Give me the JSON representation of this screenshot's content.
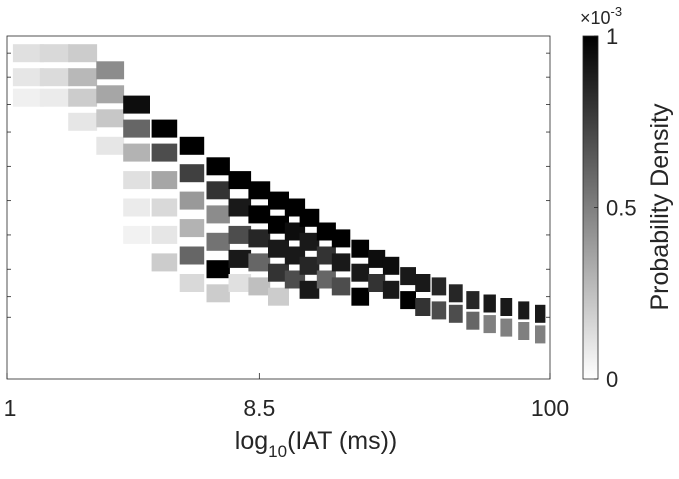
{
  "chart_data": {
    "type": "heatmap",
    "xlabel_main": "log",
    "xlabel_sub": "10",
    "xlabel_rest": "(IAT (ms))",
    "x_tick_labels": [
      "1",
      "8.5",
      "100"
    ],
    "x_tick_values": [
      1,
      8.5,
      100
    ],
    "x_scale": "log",
    "xlim": [
      1,
      100
    ],
    "colorbar": {
      "label": "Probability Density",
      "tick_labels": [
        "0",
        "0.5",
        "1"
      ],
      "tick_values": [
        0,
        0.5,
        1
      ],
      "exponent_base": "×10",
      "exponent_power": "-3",
      "colormap": [
        "#ffffff",
        "#000000"
      ]
    },
    "ylabel": "",
    "grid": false,
    "cells": [
      {
        "x": 1.2,
        "y": 0.95,
        "v": 0.12
      },
      {
        "x": 1.5,
        "y": 0.95,
        "v": 0.15
      },
      {
        "x": 1.2,
        "y": 0.88,
        "v": 0.1
      },
      {
        "x": 1.5,
        "y": 0.88,
        "v": 0.14
      },
      {
        "x": 1.2,
        "y": 0.82,
        "v": 0.06
      },
      {
        "x": 1.5,
        "y": 0.82,
        "v": 0.08
      },
      {
        "x": 1.9,
        "y": 0.95,
        "v": 0.2
      },
      {
        "x": 1.9,
        "y": 0.88,
        "v": 0.28
      },
      {
        "x": 1.9,
        "y": 0.82,
        "v": 0.2
      },
      {
        "x": 1.9,
        "y": 0.75,
        "v": 0.1
      },
      {
        "x": 2.4,
        "y": 0.9,
        "v": 0.45
      },
      {
        "x": 2.4,
        "y": 0.83,
        "v": 0.35
      },
      {
        "x": 2.4,
        "y": 0.76,
        "v": 0.22
      },
      {
        "x": 2.4,
        "y": 0.68,
        "v": 0.1
      },
      {
        "x": 3.0,
        "y": 0.8,
        "v": 0.95
      },
      {
        "x": 3.0,
        "y": 0.73,
        "v": 0.6
      },
      {
        "x": 3.0,
        "y": 0.66,
        "v": 0.3
      },
      {
        "x": 3.0,
        "y": 0.58,
        "v": 0.12
      },
      {
        "x": 3.0,
        "y": 0.5,
        "v": 0.08
      },
      {
        "x": 3.0,
        "y": 0.42,
        "v": 0.05
      },
      {
        "x": 3.8,
        "y": 0.73,
        "v": 1.0
      },
      {
        "x": 3.8,
        "y": 0.66,
        "v": 0.7
      },
      {
        "x": 3.8,
        "y": 0.58,
        "v": 0.35
      },
      {
        "x": 3.8,
        "y": 0.5,
        "v": 0.15
      },
      {
        "x": 3.8,
        "y": 0.42,
        "v": 0.1
      },
      {
        "x": 3.8,
        "y": 0.34,
        "v": 0.2
      },
      {
        "x": 4.8,
        "y": 0.68,
        "v": 1.0
      },
      {
        "x": 4.8,
        "y": 0.6,
        "v": 0.75
      },
      {
        "x": 4.8,
        "y": 0.52,
        "v": 0.4
      },
      {
        "x": 4.8,
        "y": 0.44,
        "v": 0.3
      },
      {
        "x": 4.8,
        "y": 0.36,
        "v": 0.6
      },
      {
        "x": 4.8,
        "y": 0.28,
        "v": 0.15
      },
      {
        "x": 6.0,
        "y": 0.62,
        "v": 1.0
      },
      {
        "x": 6.0,
        "y": 0.55,
        "v": 0.8
      },
      {
        "x": 6.0,
        "y": 0.48,
        "v": 0.45
      },
      {
        "x": 6.0,
        "y": 0.4,
        "v": 0.55
      },
      {
        "x": 6.0,
        "y": 0.32,
        "v": 1.0
      },
      {
        "x": 6.0,
        "y": 0.25,
        "v": 0.2
      },
      {
        "x": 7.2,
        "y": 0.58,
        "v": 1.0
      },
      {
        "x": 7.2,
        "y": 0.5,
        "v": 0.9
      },
      {
        "x": 7.2,
        "y": 0.42,
        "v": 0.7
      },
      {
        "x": 7.2,
        "y": 0.35,
        "v": 0.9
      },
      {
        "x": 7.2,
        "y": 0.28,
        "v": 0.12
      },
      {
        "x": 8.5,
        "y": 0.55,
        "v": 1.0
      },
      {
        "x": 8.5,
        "y": 0.48,
        "v": 1.0
      },
      {
        "x": 8.5,
        "y": 0.41,
        "v": 0.85
      },
      {
        "x": 8.5,
        "y": 0.34,
        "v": 0.6
      },
      {
        "x": 8.5,
        "y": 0.27,
        "v": 0.25
      },
      {
        "x": 10,
        "y": 0.52,
        "v": 1.0
      },
      {
        "x": 10,
        "y": 0.45,
        "v": 1.0
      },
      {
        "x": 10,
        "y": 0.38,
        "v": 0.9
      },
      {
        "x": 10,
        "y": 0.31,
        "v": 0.8
      },
      {
        "x": 10,
        "y": 0.24,
        "v": 0.2
      },
      {
        "x": 11.5,
        "y": 0.5,
        "v": 1.0
      },
      {
        "x": 11.5,
        "y": 0.43,
        "v": 0.95
      },
      {
        "x": 11.5,
        "y": 0.36,
        "v": 0.9
      },
      {
        "x": 11.5,
        "y": 0.29,
        "v": 0.7
      },
      {
        "x": 13,
        "y": 0.47,
        "v": 1.0
      },
      {
        "x": 13,
        "y": 0.4,
        "v": 0.9
      },
      {
        "x": 13,
        "y": 0.33,
        "v": 0.85
      },
      {
        "x": 13,
        "y": 0.26,
        "v": 0.9
      },
      {
        "x": 15,
        "y": 0.43,
        "v": 1.0
      },
      {
        "x": 15,
        "y": 0.36,
        "v": 0.8
      },
      {
        "x": 15,
        "y": 0.29,
        "v": 0.6
      },
      {
        "x": 17,
        "y": 0.41,
        "v": 1.0
      },
      {
        "x": 17,
        "y": 0.34,
        "v": 0.9
      },
      {
        "x": 17,
        "y": 0.27,
        "v": 0.7
      },
      {
        "x": 20,
        "y": 0.38,
        "v": 1.0
      },
      {
        "x": 20,
        "y": 0.31,
        "v": 0.9
      },
      {
        "x": 20,
        "y": 0.24,
        "v": 1.0
      },
      {
        "x": 23,
        "y": 0.35,
        "v": 0.95
      },
      {
        "x": 23,
        "y": 0.28,
        "v": 0.8
      },
      {
        "x": 26,
        "y": 0.33,
        "v": 0.95
      },
      {
        "x": 26,
        "y": 0.26,
        "v": 0.9
      },
      {
        "x": 30,
        "y": 0.3,
        "v": 0.9
      },
      {
        "x": 30,
        "y": 0.23,
        "v": 1.0
      },
      {
        "x": 34,
        "y": 0.28,
        "v": 0.9
      },
      {
        "x": 34,
        "y": 0.21,
        "v": 0.8
      },
      {
        "x": 39,
        "y": 0.27,
        "v": 0.85
      },
      {
        "x": 39,
        "y": 0.2,
        "v": 0.7
      },
      {
        "x": 45,
        "y": 0.25,
        "v": 0.85
      },
      {
        "x": 45,
        "y": 0.19,
        "v": 0.7
      },
      {
        "x": 52,
        "y": 0.23,
        "v": 0.85
      },
      {
        "x": 52,
        "y": 0.17,
        "v": 0.6
      },
      {
        "x": 60,
        "y": 0.22,
        "v": 0.9
      },
      {
        "x": 60,
        "y": 0.16,
        "v": 0.5
      },
      {
        "x": 69,
        "y": 0.21,
        "v": 0.9
      },
      {
        "x": 69,
        "y": 0.15,
        "v": 0.5
      },
      {
        "x": 80,
        "y": 0.2,
        "v": 0.9
      },
      {
        "x": 80,
        "y": 0.14,
        "v": 0.5
      },
      {
        "x": 92,
        "y": 0.19,
        "v": 0.9
      },
      {
        "x": 92,
        "y": 0.13,
        "v": 0.5
      }
    ]
  }
}
